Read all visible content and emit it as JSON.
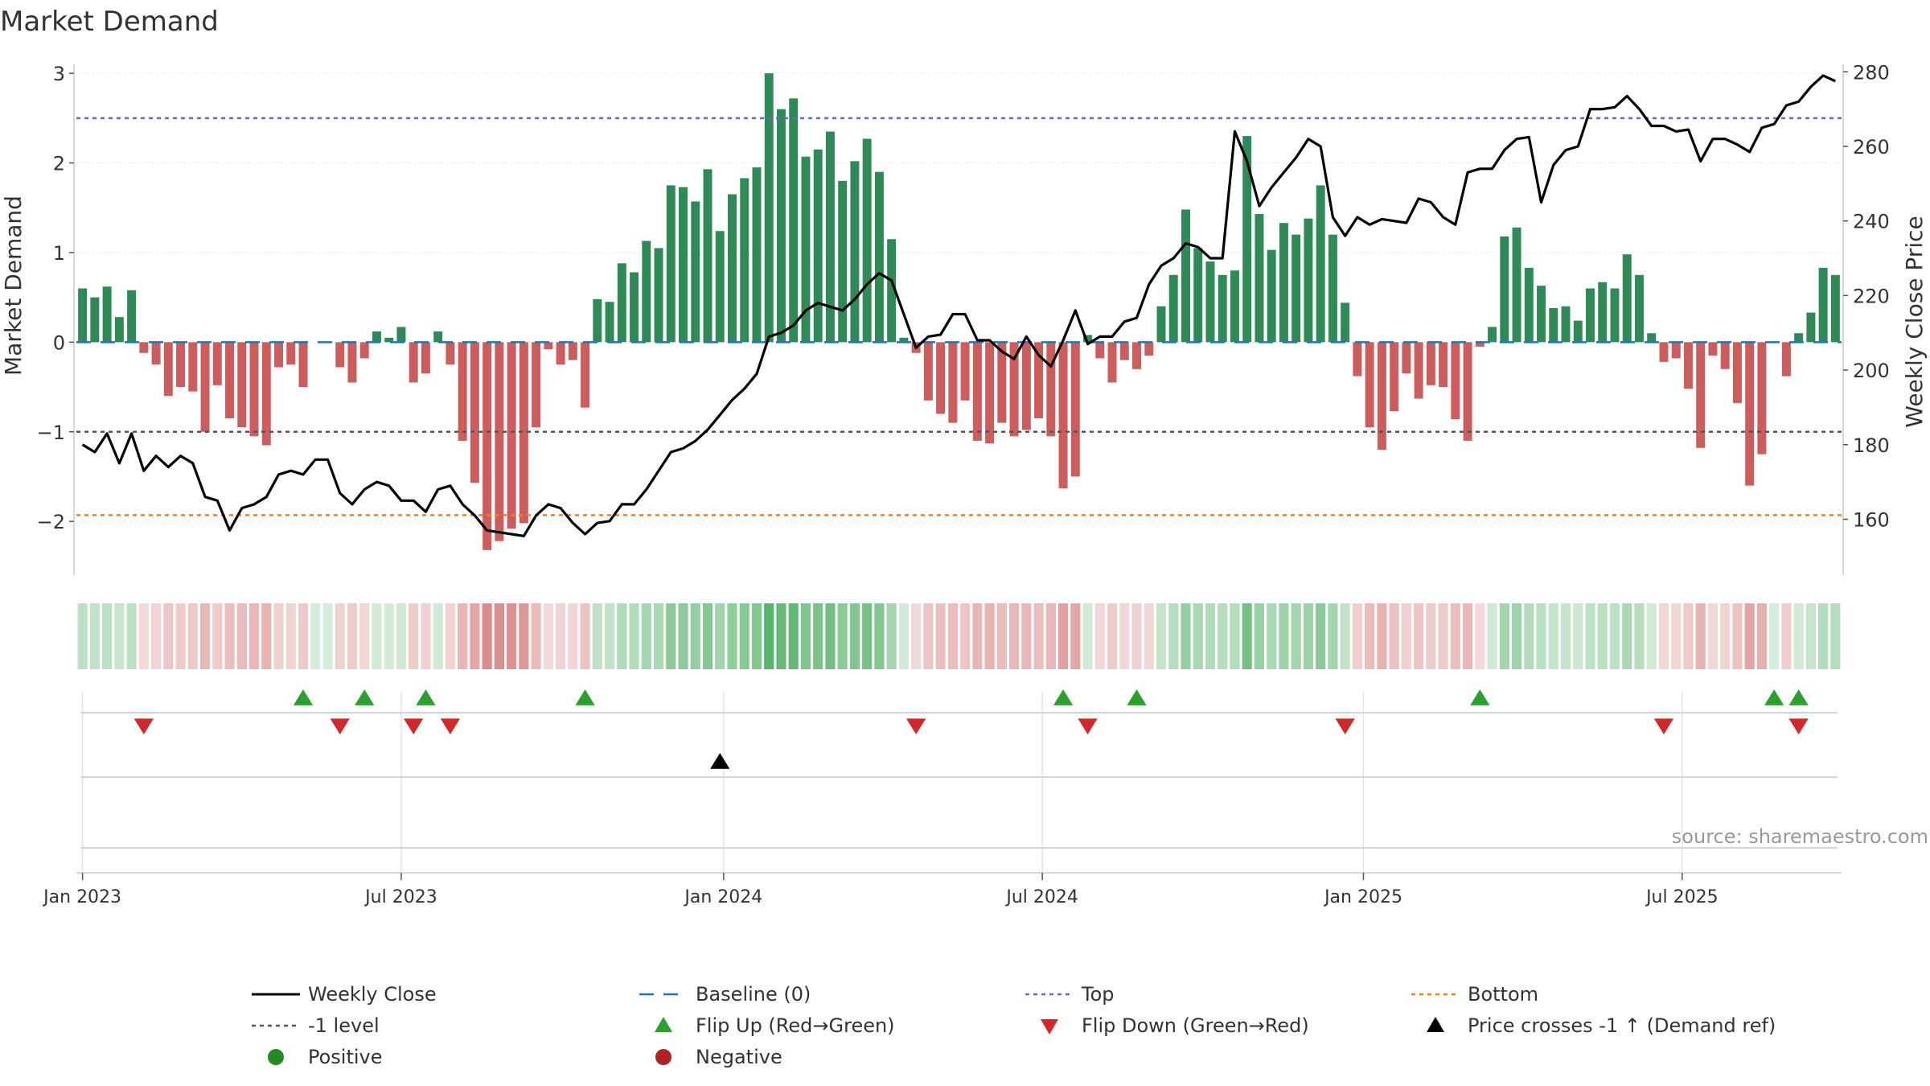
{
  "chart_data": {
    "type": "bar",
    "title": "Market Demand",
    "ylabel_left": "Market Demand",
    "ylabel_right": "Weekly Close Price",
    "source": "source: sharemaestro.com",
    "ylim_left": [
      -2.6,
      3.1
    ],
    "ylim_right": [
      145,
      282
    ],
    "yticks_left": [
      -2,
      -1,
      0,
      1,
      2,
      3
    ],
    "ytick_labels_left": [
      "−2",
      "−1",
      "0",
      "1",
      "2",
      "3"
    ],
    "yticks_right": [
      160,
      180,
      200,
      220,
      240,
      260,
      280
    ],
    "ytick_labels_right": [
      "160",
      "180",
      "200",
      "220",
      "240",
      "260",
      "280"
    ],
    "x_tick_weeks": [
      0,
      26,
      52.3,
      78.3,
      104.5,
      130.5
    ],
    "x_tick_labels": [
      "Jan 2023",
      "Jul 2023",
      "Jan 2024",
      "Jul 2024",
      "Jan 2025",
      "Jul 2025"
    ],
    "ref_lines": {
      "baseline": 0,
      "top": 2.5,
      "minus1": -1,
      "bottom": -1.93
    },
    "demand": [
      0.6,
      0.5,
      0.62,
      0.28,
      0.58,
      -0.12,
      -0.25,
      -0.6,
      -0.5,
      -0.55,
      -1.0,
      -0.48,
      -0.85,
      -0.95,
      -1.05,
      -1.15,
      -0.28,
      -0.25,
      -0.5,
      0,
      0,
      -0.28,
      -0.45,
      -0.18,
      0.12,
      0.05,
      0.17,
      -0.45,
      -0.35,
      0.12,
      -0.25,
      -1.1,
      -1.57,
      -2.32,
      -2.22,
      -2.08,
      -2.02,
      -0.95,
      -0.08,
      -0.25,
      -0.2,
      -0.73,
      0.48,
      0.45,
      0.88,
      0.78,
      1.13,
      1.05,
      1.75,
      1.73,
      1.57,
      1.93,
      1.24,
      1.65,
      1.83,
      1.95,
      3.0,
      2.6,
      2.72,
      2.07,
      2.15,
      2.35,
      1.8,
      2.02,
      2.27,
      1.9,
      1.15,
      0.05,
      -0.12,
      -0.65,
      -0.8,
      -0.9,
      -0.65,
      -1.1,
      -1.13,
      -0.9,
      -1.05,
      -0.98,
      -0.85,
      -1.05,
      -1.63,
      -1.5,
      0.08,
      -0.18,
      -0.45,
      -0.2,
      -0.3,
      -0.15,
      0.4,
      0.75,
      1.48,
      1.05,
      0.9,
      0.75,
      0.8,
      2.3,
      1.43,
      1.03,
      1.33,
      1.2,
      1.38,
      1.75,
      1.2,
      0.44,
      -0.38,
      -0.95,
      -1.2,
      -0.77,
      -0.35,
      -0.63,
      -0.48,
      -0.5,
      -0.86,
      -1.1,
      -0.05,
      0.17,
      1.18,
      1.28,
      0.83,
      0.63,
      0.38,
      0.4,
      0.24,
      0.6,
      0.67,
      0.6,
      0.98,
      0.75,
      0.1,
      -0.22,
      -0.18,
      -0.52,
      -1.18,
      -0.15,
      -0.3,
      -0.68,
      -1.6,
      -1.25,
      0,
      -0.38,
      0.1,
      0.33,
      0.83,
      0.75
    ],
    "close": [
      180,
      178,
      183,
      175,
      183,
      173,
      177,
      174,
      177,
      175,
      166,
      165,
      157,
      163,
      164,
      166,
      172,
      173,
      172,
      176,
      176,
      167,
      164,
      168,
      170,
      169,
      165,
      165,
      162,
      168,
      169,
      164,
      161,
      157,
      156.5,
      156,
      155.5,
      161,
      164,
      163,
      159,
      156,
      159,
      159.5,
      164,
      164,
      168,
      173,
      178,
      179,
      181,
      184,
      188,
      192,
      195,
      199,
      209,
      210,
      212,
      216,
      218,
      217,
      216,
      219,
      223,
      226,
      224,
      215,
      206,
      209,
      209.5,
      215,
      215,
      208,
      208,
      205,
      203,
      209,
      204,
      201,
      208,
      216,
      207,
      209,
      209,
      213,
      214,
      223,
      228,
      230,
      234,
      233,
      230,
      230,
      264,
      256,
      244,
      249,
      253,
      257,
      262,
      260,
      241,
      236,
      241,
      239,
      240.5,
      240,
      239.5,
      246,
      245,
      241,
      239,
      253,
      254,
      254,
      259,
      262,
      262.5,
      245,
      255,
      259,
      260,
      270,
      270,
      270.5,
      273.5,
      270,
      265.5,
      265.5,
      264,
      264.5,
      256,
      262,
      262,
      260.5,
      258.5,
      265,
      266,
      271,
      272,
      276,
      279,
      277.5
    ],
    "flip_up_weeks": [
      18,
      23,
      28,
      41,
      80,
      86,
      114,
      138,
      140
    ],
    "flip_down_weeks": [
      5,
      21,
      27,
      30,
      68,
      82,
      103,
      129,
      140
    ],
    "cross_weeks": [
      52
    ],
    "legend": [
      {
        "key": "close",
        "label": "Weekly Close",
        "color": "#000000"
      },
      {
        "key": "baseline",
        "label": "Baseline (0)",
        "color": "#1f77b4"
      },
      {
        "key": "top",
        "label": "Top",
        "color": "#6a67c6"
      },
      {
        "key": "bottom",
        "label": "Bottom",
        "color": "#ff7f0e"
      },
      {
        "key": "minus1",
        "label": "-1 level",
        "color": "#555555"
      },
      {
        "key": "flipup",
        "label": "Flip Up (Red→Green)",
        "color": "#2ca02c"
      },
      {
        "key": "flipdown",
        "label": "Flip Down (Green→Red)",
        "color": "#d62728"
      },
      {
        "key": "cross",
        "label": "Price crosses -1 ↑ (Demand ref)",
        "color": "#000000"
      },
      {
        "key": "positive",
        "label": "Positive",
        "color": "#228b22"
      },
      {
        "key": "negative",
        "label": "Negative",
        "color": "#b22222"
      }
    ],
    "colors": {
      "positive_bar": "#2e8b57",
      "negative_bar": "#cd5c5c",
      "price_line": "#000000"
    }
  }
}
